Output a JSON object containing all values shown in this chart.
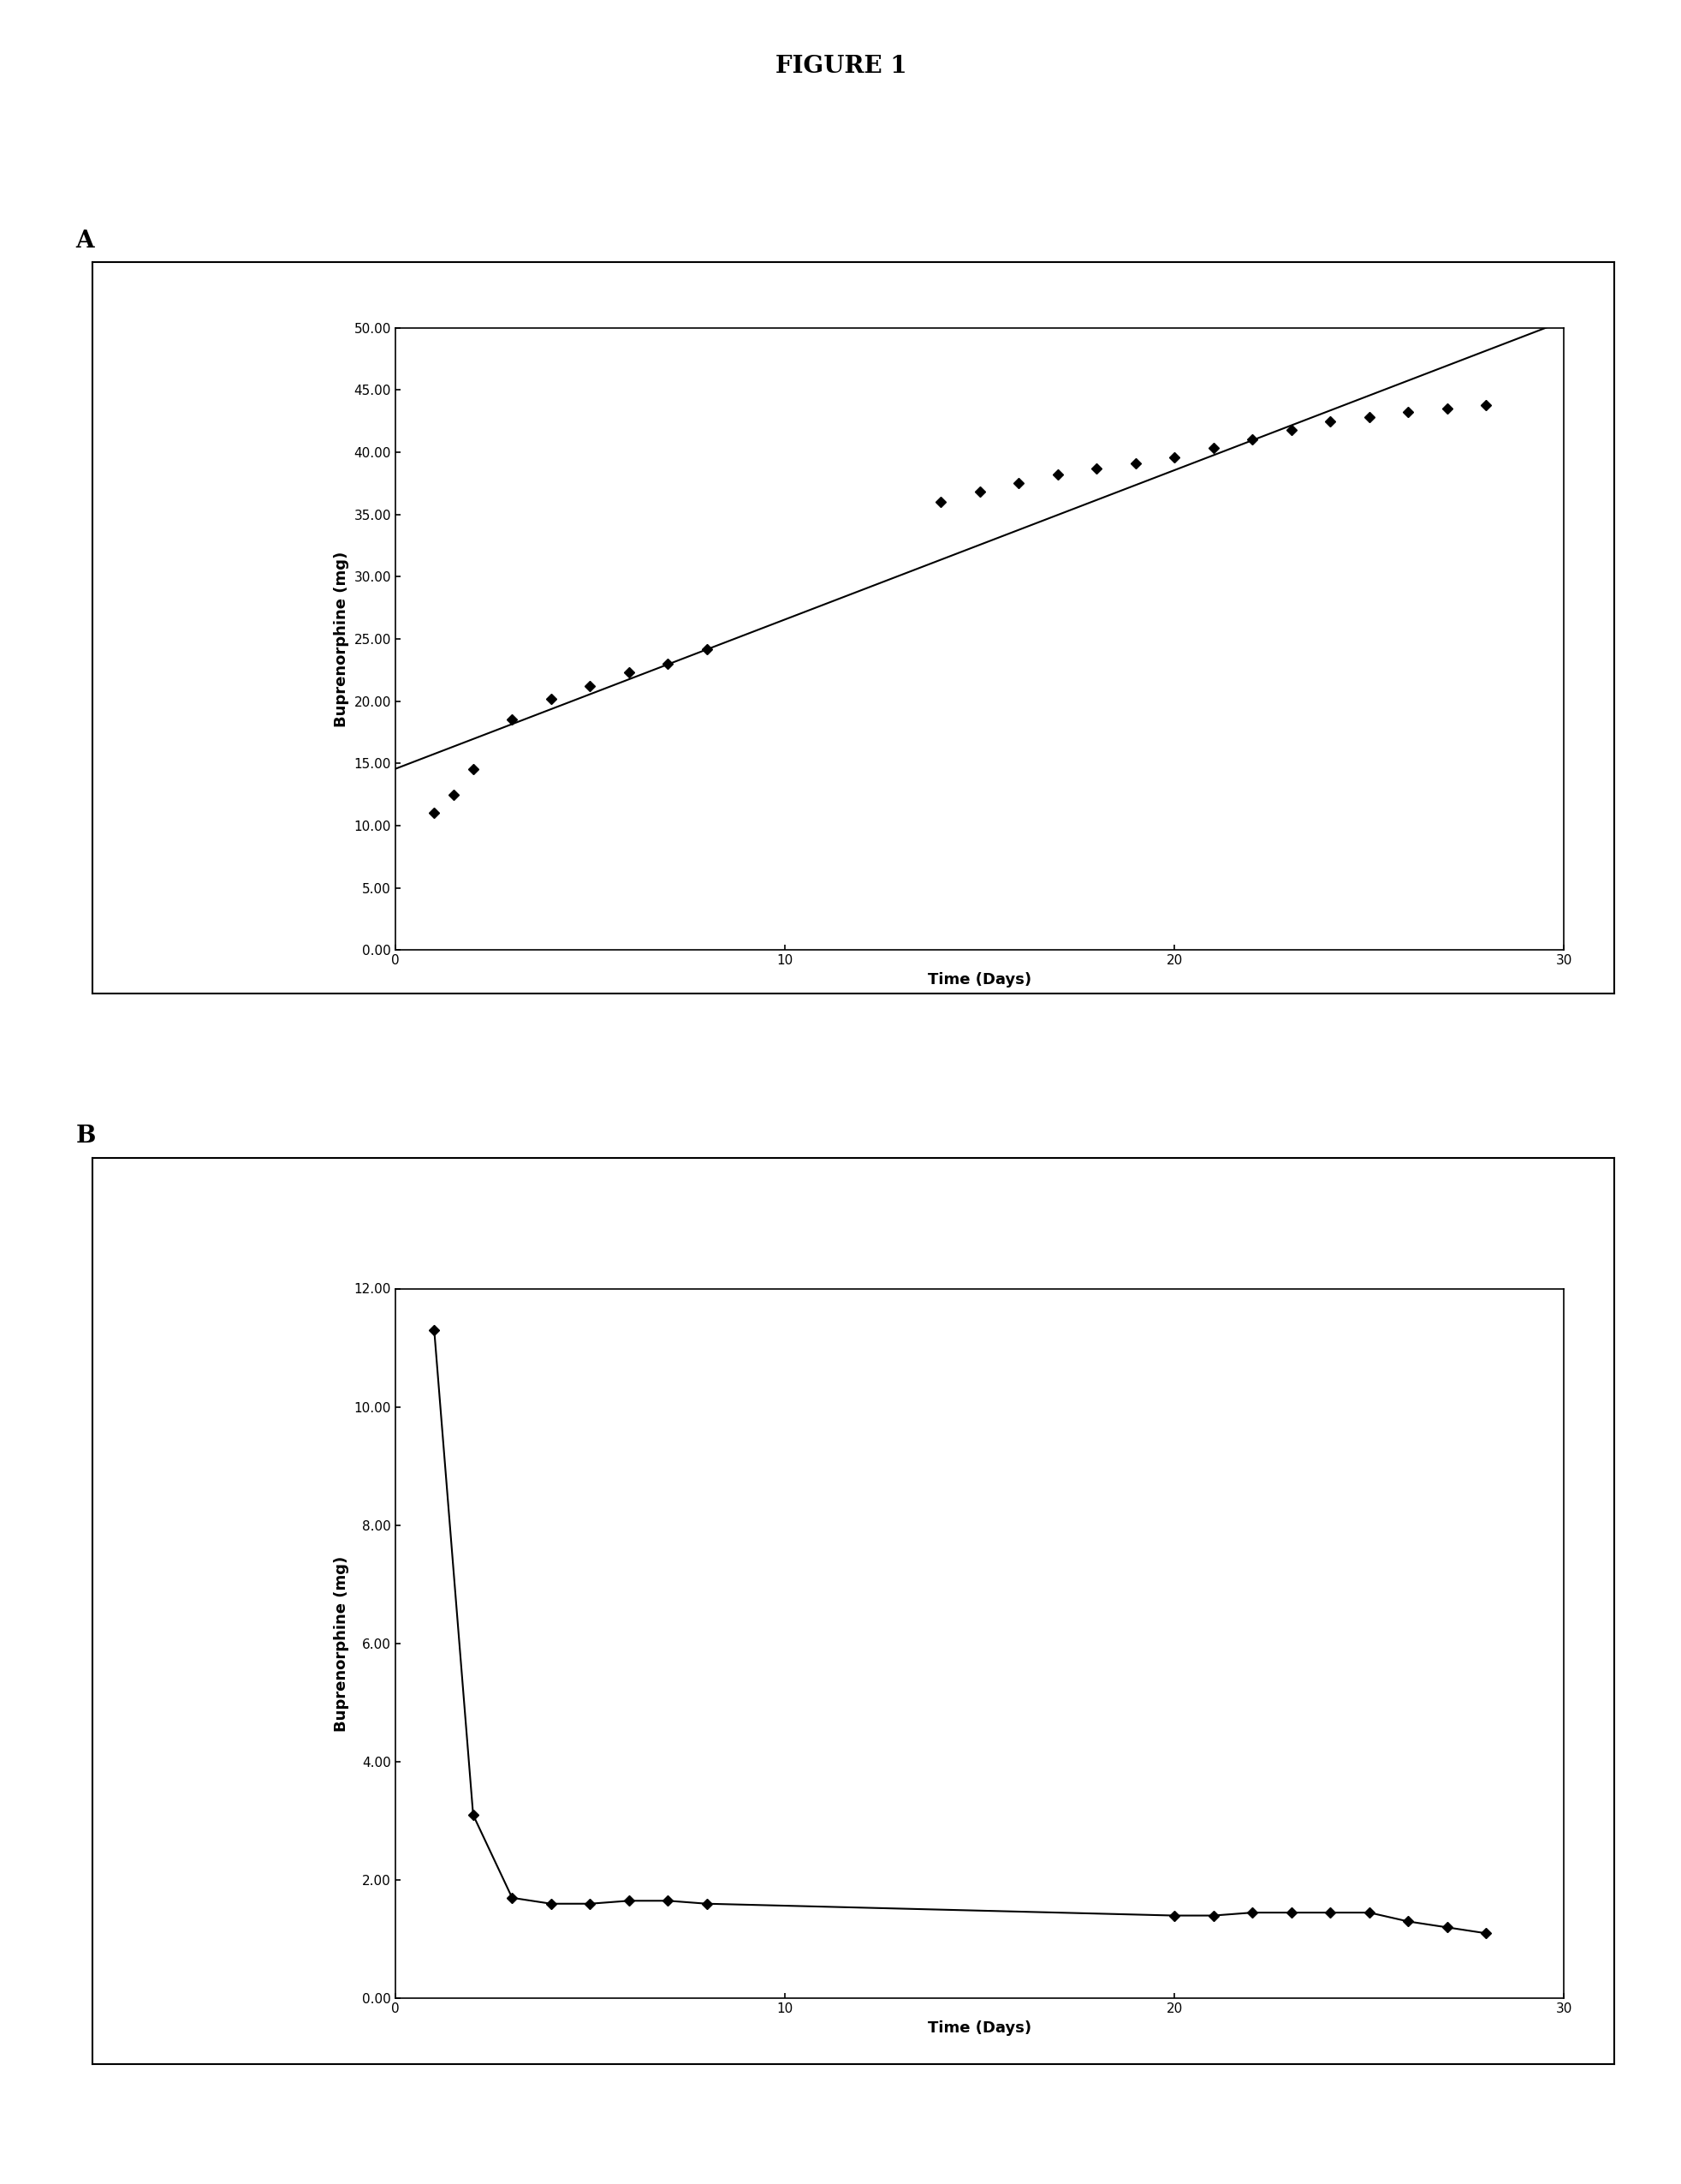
{
  "figure_title": "FIGURE 1",
  "panel_A_label": "A",
  "panel_B_label": "B",
  "panel_A_xlabel": "Time (Days)",
  "panel_A_ylabel": "Buprenorphine (mg)",
  "panel_B_xlabel": "Time (Days)",
  "panel_B_ylabel": "Buprenorphine (mg)",
  "panel_A_yticks": [
    0.0,
    5.0,
    10.0,
    15.0,
    20.0,
    25.0,
    30.0,
    35.0,
    40.0,
    45.0,
    50.0
  ],
  "panel_A_xticks": [
    0,
    10,
    20,
    30
  ],
  "panel_A_ylim": [
    0.0,
    50.0
  ],
  "panel_A_xlim": [
    0,
    30
  ],
  "panel_B_yticks": [
    0.0,
    2.0,
    4.0,
    6.0,
    8.0,
    10.0,
    12.0
  ],
  "panel_B_xticks": [
    0,
    10,
    20,
    30
  ],
  "panel_B_ylim": [
    0.0,
    12.0
  ],
  "panel_B_xlim": [
    0,
    30
  ],
  "panel_A_x": [
    1,
    1.5,
    2,
    3,
    4,
    5,
    6,
    7,
    8,
    14,
    15,
    16,
    17,
    18,
    19,
    20,
    21,
    22,
    23,
    24,
    25,
    26,
    27,
    28
  ],
  "panel_A_y": [
    11.0,
    12.5,
    14.5,
    18.5,
    20.2,
    21.2,
    22.3,
    23.0,
    24.2,
    36.0,
    36.8,
    37.5,
    38.2,
    38.7,
    39.1,
    39.6,
    40.3,
    41.0,
    41.8,
    42.5,
    42.8,
    43.2,
    43.5,
    43.8
  ],
  "panel_B_x": [
    1,
    2,
    3,
    4,
    5,
    6,
    7,
    8,
    20,
    21,
    22,
    23,
    24,
    25,
    26,
    27,
    28
  ],
  "panel_B_y": [
    11.3,
    3.1,
    1.7,
    1.6,
    1.6,
    1.65,
    1.65,
    1.6,
    1.4,
    1.4,
    1.45,
    1.45,
    1.45,
    1.45,
    1.3,
    1.2,
    1.1
  ],
  "line_color": "#000000",
  "marker_color": "#000000",
  "background_color": "#ffffff",
  "title_fontsize": 20,
  "label_fontsize": 13,
  "tick_fontsize": 11,
  "panel_label_fontsize": 20
}
